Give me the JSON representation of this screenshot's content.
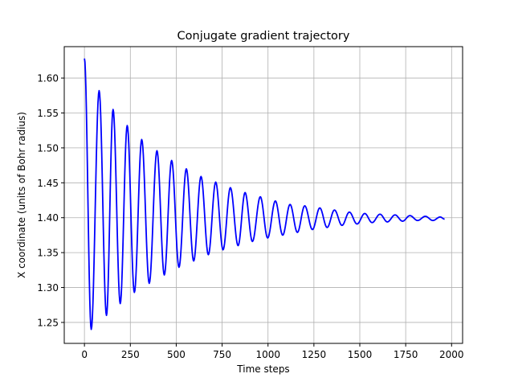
{
  "chart_data": {
    "type": "line",
    "title": "Conjugate gradient trajectory",
    "xlabel": "Time steps",
    "ylabel": "X coordinate (units of Bohr radius)",
    "xlim": [
      -110,
      2060
    ],
    "ylim": [
      1.22,
      1.645
    ],
    "xticks": [
      0,
      250,
      500,
      750,
      1000,
      1250,
      1500,
      1750,
      2000
    ],
    "yticks": [
      1.25,
      1.3,
      1.35,
      1.4,
      1.45,
      1.5,
      1.55,
      1.6
    ],
    "x_tick_labels": [
      "0",
      "250",
      "500",
      "750",
      "1000",
      "1250",
      "1500",
      "1750",
      "2000"
    ],
    "y_tick_labels": [
      "1.25",
      "1.30",
      "1.35",
      "1.40",
      "1.45",
      "1.50",
      "1.55",
      "1.60"
    ],
    "grid": true,
    "series": [
      {
        "color": "#0000ff",
        "x": [
          0,
          37,
          80,
          120,
          156,
          195,
          233,
          272,
          312,
          353,
          395,
          435,
          475,
          515,
          555,
          595,
          635,
          675,
          715,
          755,
          795,
          837,
          875,
          915,
          958,
          998,
          1040,
          1080,
          1120,
          1160,
          1200,
          1242,
          1282,
          1322,
          1362,
          1403,
          1443,
          1485,
          1527,
          1567,
          1610,
          1650,
          1692,
          1733,
          1773,
          1815,
          1857,
          1898,
          1938,
          1962
        ],
        "y": [
          1.628,
          1.24,
          1.582,
          1.26,
          1.555,
          1.277,
          1.532,
          1.293,
          1.512,
          1.306,
          1.496,
          1.318,
          1.482,
          1.329,
          1.47,
          1.338,
          1.459,
          1.347,
          1.451,
          1.354,
          1.443,
          1.36,
          1.436,
          1.366,
          1.43,
          1.371,
          1.424,
          1.375,
          1.419,
          1.379,
          1.417,
          1.383,
          1.414,
          1.386,
          1.411,
          1.389,
          1.408,
          1.391,
          1.406,
          1.393,
          1.405,
          1.394,
          1.404,
          1.395,
          1.403,
          1.396,
          1.402,
          1.396,
          1.401,
          1.398
        ]
      }
    ]
  }
}
